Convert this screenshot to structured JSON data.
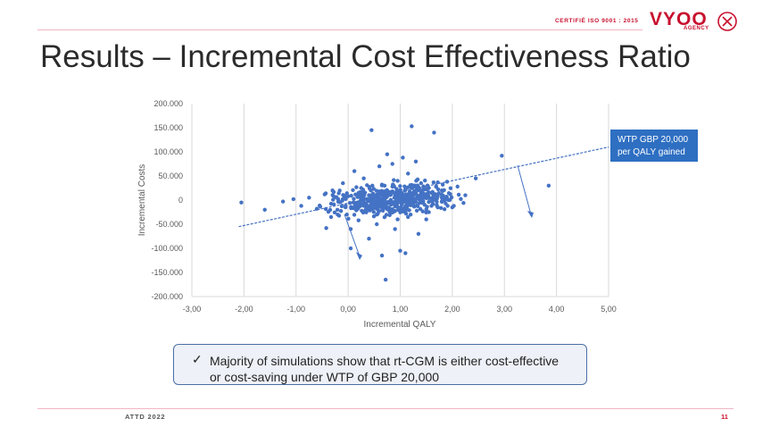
{
  "header": {
    "certification": "CERTIFIÉ ISO 9001 : 2015",
    "logo_text": "VYOO",
    "logo_sub": "AGENCY"
  },
  "slide": {
    "title": "Results – Incremental Cost Effectiveness Ratio"
  },
  "chart_data": {
    "type": "scatter",
    "xlabel": "Incremental QALY",
    "ylabel": "Incremental Costs",
    "xlim": [
      -3,
      5
    ],
    "ylim": [
      -200000,
      200000
    ],
    "x_ticks": [
      "-3,00",
      "-2,00",
      "-1,00",
      "0,00",
      "1,00",
      "2,00",
      "3,00",
      "4,00",
      "5,00"
    ],
    "y_ticks": [
      "200.000",
      "150.000",
      "100.000",
      "50.000",
      "0",
      "-50.000",
      "-100.000",
      "-150.000",
      "-200.000"
    ],
    "grid": "vertical",
    "series": [
      {
        "points": [
          [
            -2.05,
            -5000
          ],
          [
            -1.6,
            -20000
          ],
          [
            -1.25,
            -3000
          ],
          [
            -1.05,
            2000
          ],
          [
            -0.9,
            -12000
          ],
          [
            -0.75,
            5000
          ],
          [
            -0.6,
            -18000
          ],
          [
            -0.45,
            12000
          ],
          [
            -0.42,
            -58000
          ],
          [
            -0.3,
            20000
          ],
          [
            -0.2,
            -30000
          ],
          [
            -0.1,
            35000
          ],
          [
            0.05,
            -60000
          ],
          [
            0.05,
            -100000
          ],
          [
            0.12,
            60000
          ],
          [
            0.2,
            -42000
          ],
          [
            0.3,
            45000
          ],
          [
            0.4,
            -80000
          ],
          [
            0.45,
            145000
          ],
          [
            0.55,
            -50000
          ],
          [
            0.6,
            70000
          ],
          [
            0.65,
            -115000
          ],
          [
            0.7,
            30000
          ],
          [
            0.72,
            -165000
          ],
          [
            0.75,
            95000
          ],
          [
            0.8,
            -20000
          ],
          [
            0.85,
            75000
          ],
          [
            0.9,
            -60000
          ],
          [
            0.95,
            40000
          ],
          [
            1.0,
            -105000
          ],
          [
            1.05,
            88000
          ],
          [
            1.1,
            -110000
          ],
          [
            1.15,
            55000
          ],
          [
            1.2,
            -30000
          ],
          [
            1.22,
            153000
          ],
          [
            1.3,
            80000
          ],
          [
            1.35,
            -70000
          ],
          [
            1.4,
            35000
          ],
          [
            1.5,
            -40000
          ],
          [
            1.55,
            25000
          ],
          [
            1.65,
            140000
          ],
          [
            1.7,
            -10000
          ],
          [
            1.8,
            20000
          ],
          [
            1.9,
            38000
          ],
          [
            2.0,
            -15000
          ],
          [
            2.1,
            28000
          ],
          [
            2.25,
            10000
          ],
          [
            2.45,
            45000
          ],
          [
            2.95,
            92000
          ],
          [
            3.85,
            30000
          ],
          [
            0.0,
            8000
          ],
          [
            0.1,
            -5000
          ],
          [
            0.2,
            15000
          ],
          [
            0.3,
            -12000
          ],
          [
            0.4,
            10000
          ],
          [
            0.5,
            -8000
          ],
          [
            0.6,
            18000
          ],
          [
            0.7,
            -16000
          ],
          [
            0.8,
            12000
          ],
          [
            0.9,
            -6000
          ],
          [
            1.0,
            14000
          ],
          [
            1.1,
            -20000
          ],
          [
            1.2,
            6000
          ],
          [
            1.3,
            -4000
          ],
          [
            1.4,
            16000
          ],
          [
            1.5,
            8000
          ],
          [
            1.6,
            -12000
          ],
          [
            1.7,
            10000
          ],
          [
            1.8,
            -2000
          ],
          [
            -0.05,
            -15000
          ],
          [
            0.25,
            25000
          ],
          [
            0.55,
            -30000
          ],
          [
            0.85,
            28000
          ],
          [
            1.15,
            -35000
          ],
          [
            1.45,
            22000
          ],
          [
            0.35,
            -22000
          ],
          [
            0.65,
            32000
          ],
          [
            0.95,
            -40000
          ],
          [
            1.25,
            30000
          ],
          [
            1.55,
            -25000
          ]
        ]
      }
    ],
    "trendline": {
      "x": [
        -2.1,
        5.0
      ],
      "y": [
        -55000,
        110000
      ]
    },
    "annotation": "WTP GBP 20,000 per QALY gained"
  },
  "callout": {
    "check": "✓",
    "text": "Majority of simulations show that rt-CGM is either cost-effective or cost-saving under WTP of GBP 20,000"
  },
  "footer": {
    "left": "ATTD 2022",
    "page": "11"
  },
  "colors": {
    "point": "#4472c4",
    "accent": "#c8102e",
    "annotation_bg": "#2e6fc2"
  }
}
